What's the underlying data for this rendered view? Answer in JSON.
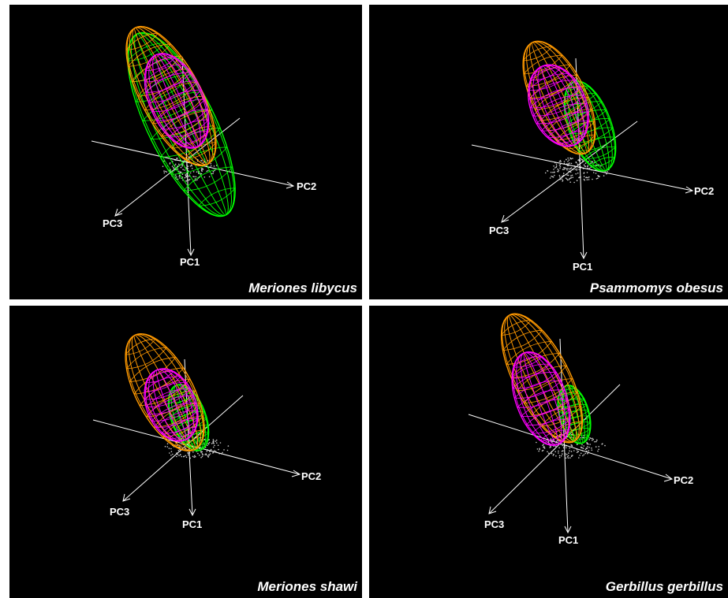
{
  "chart_data": [
    {
      "type": "scatter",
      "title": "Meriones libycus",
      "axes": [
        "PC1",
        "PC2",
        "PC3"
      ],
      "ellipsoid_colors": [
        "#ff9900",
        "#ff00ff",
        "#00ff00"
      ],
      "point_color": "#cccccc"
    },
    {
      "type": "scatter",
      "title": "Psammomys obesus",
      "axes": [
        "PC1",
        "PC2",
        "PC3"
      ],
      "ellipsoid_colors": [
        "#ff9900",
        "#ff00ff",
        "#00ff00"
      ],
      "point_color": "#cccccc"
    },
    {
      "type": "scatter",
      "title": "Meriones shawi",
      "axes": [
        "PC1",
        "PC2",
        "PC3"
      ],
      "ellipsoid_colors": [
        "#ff9900",
        "#ff00ff",
        "#00ff00"
      ],
      "point_color": "#cccccc"
    },
    {
      "type": "scatter",
      "title": "Gerbillus gerbillus",
      "axes": [
        "PC1",
        "PC2",
        "PC3"
      ],
      "ellipsoid_colors": [
        "#ff9900",
        "#ff00ff",
        "#00ff00"
      ],
      "point_color": "#cccccc"
    }
  ]
}
